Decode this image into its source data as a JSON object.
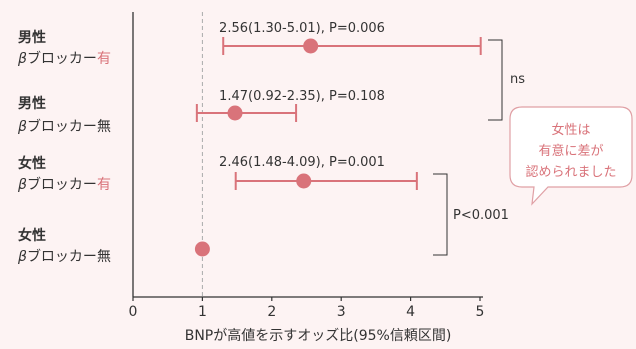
{
  "chart_data": {
    "type": "forest",
    "xlabel": "BNPが高値を示すオッズ比(95%信頼区間)",
    "xlim": [
      0,
      5
    ],
    "xticks": [
      0,
      1,
      2,
      3,
      4,
      5
    ],
    "reference_line": 1,
    "groups": [
      {
        "label": "男性",
        "sub_prefix": "βブロッカー",
        "sub_suffix": "有",
        "or": 2.56,
        "lo": 1.3,
        "hi": 5.01,
        "annotation": "2.56(1.30-5.01), P=0.006"
      },
      {
        "label": "男性",
        "sub_prefix": "βブロッカー",
        "sub_suffix": "無",
        "or": 1.47,
        "lo": 0.92,
        "hi": 2.35,
        "annotation": "1.47(0.92-2.35), P=0.108"
      },
      {
        "label": "女性",
        "sub_prefix": "βブロッカー",
        "sub_suffix": "有",
        "or": 2.46,
        "lo": 1.48,
        "hi": 4.09,
        "annotation": "2.46(1.48-4.09), P=0.001"
      },
      {
        "label": "女性",
        "sub_prefix": "βブロッカー",
        "sub_suffix": "無",
        "or": 1,
        "annotation": ""
      }
    ],
    "comparisons": [
      {
        "label": "ns",
        "between": [
          0,
          1
        ]
      },
      {
        "label": "P<0.001",
        "between": [
          2,
          3
        ]
      }
    ],
    "callout": [
      "女性は",
      "有意に差が",
      "認められました"
    ]
  },
  "colors": {
    "accent": "#d9737a",
    "text": "#333333",
    "axis": "#333333",
    "refline": "#aaaaaa",
    "bubble_bg": "#ffffff",
    "bubble_border": "#e0a0a5"
  }
}
